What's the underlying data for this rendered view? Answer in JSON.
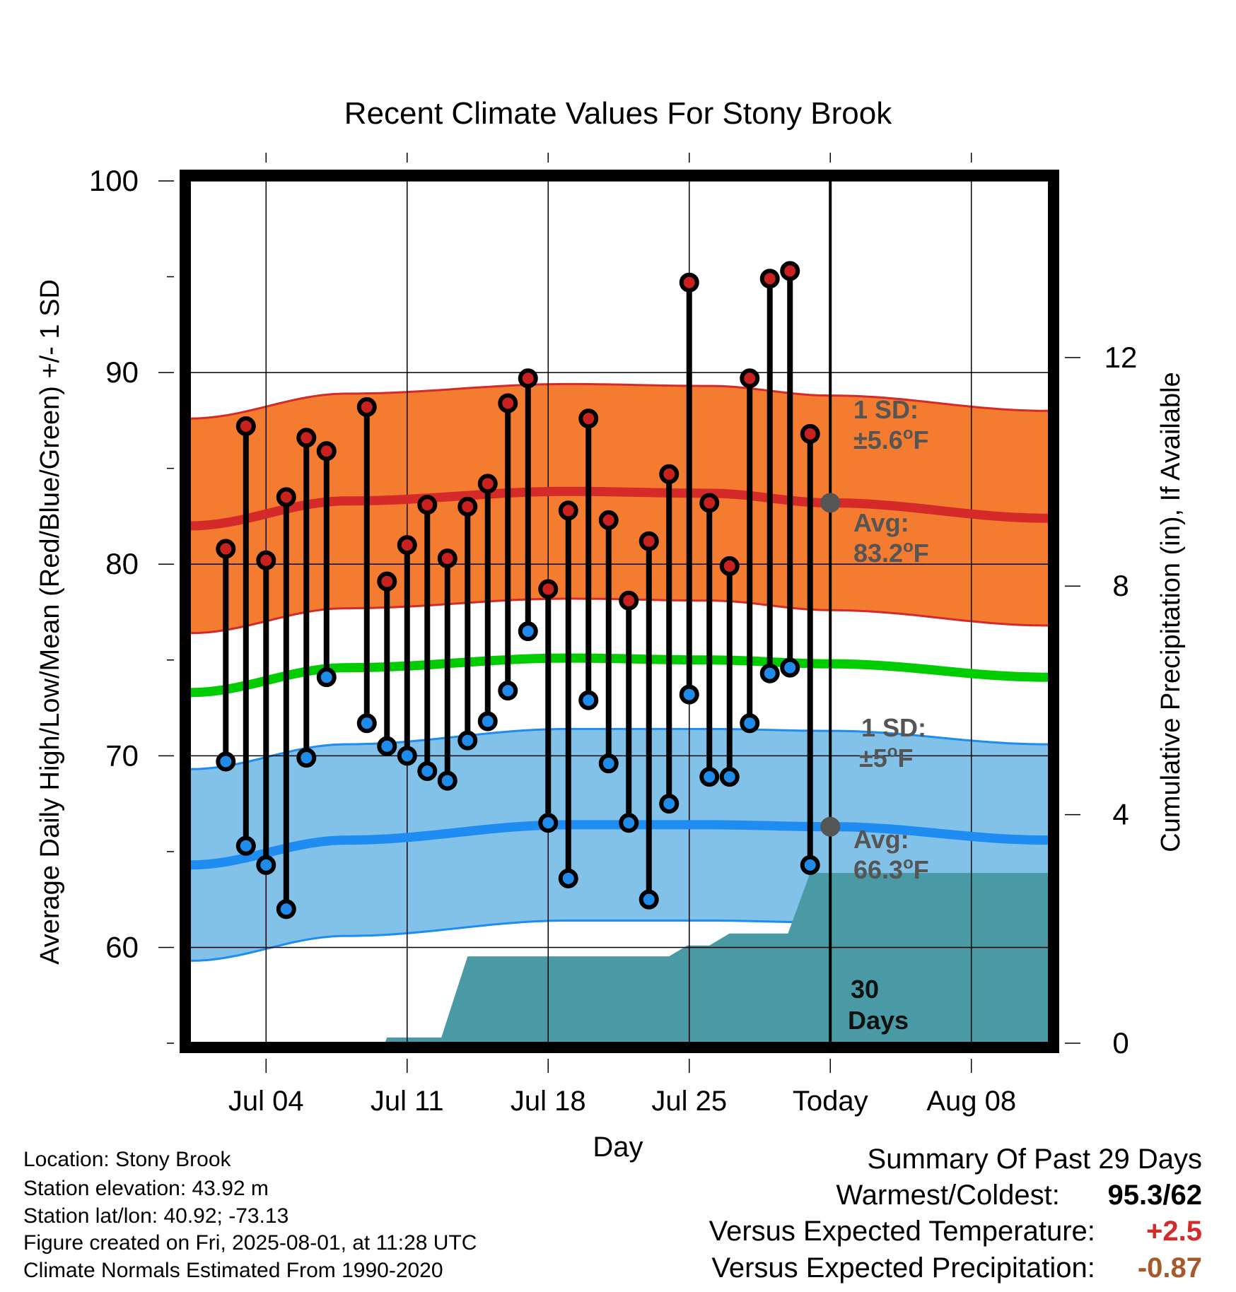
{
  "chart_data": {
    "type": "line",
    "title": "Recent Climate Values For Stony Brook",
    "xlabel": "Day",
    "ylabel_left": "Average Daily High/Low/Mean (Red/Blue/Green) +/- 1 SD",
    "ylabel_right": "Cumulative Precipitation (in), If Available",
    "x_tick_labels": [
      "Jul 04",
      "Jul 11",
      "Jul 18",
      "Jul 25",
      "Today",
      "Aug 08"
    ],
    "x_tick_days": [
      4,
      11,
      18,
      25,
      32,
      39
    ],
    "xlim_days": [
      0.2,
      42.8
    ],
    "ylim": [
      55,
      100
    ],
    "yticks_left": [
      60,
      70,
      80,
      90,
      100
    ],
    "ylim_right": [
      0,
      15.09
    ],
    "yticks_right": [
      0,
      4,
      8,
      12
    ],
    "today_day": 32,
    "grid": true,
    "daily_high": [
      {
        "day": 2,
        "value": 80.8
      },
      {
        "day": 3,
        "value": 87.2
      },
      {
        "day": 4,
        "value": 80.2
      },
      {
        "day": 5,
        "value": 83.5
      },
      {
        "day": 6,
        "value": 86.6
      },
      {
        "day": 7,
        "value": 85.9
      },
      {
        "day": 9,
        "value": 88.2
      },
      {
        "day": 10,
        "value": 79.1
      },
      {
        "day": 11,
        "value": 81.0
      },
      {
        "day": 12,
        "value": 83.1
      },
      {
        "day": 13,
        "value": 80.3
      },
      {
        "day": 14,
        "value": 83.0
      },
      {
        "day": 15,
        "value": 84.2
      },
      {
        "day": 16,
        "value": 88.4
      },
      {
        "day": 17,
        "value": 89.7
      },
      {
        "day": 18,
        "value": 78.7
      },
      {
        "day": 19,
        "value": 82.8
      },
      {
        "day": 20,
        "value": 87.6
      },
      {
        "day": 21,
        "value": 82.3
      },
      {
        "day": 22,
        "value": 78.1
      },
      {
        "day": 23,
        "value": 81.2
      },
      {
        "day": 24,
        "value": 84.7
      },
      {
        "day": 25,
        "value": 94.7
      },
      {
        "day": 26,
        "value": 83.2
      },
      {
        "day": 27,
        "value": 79.9
      },
      {
        "day": 28,
        "value": 89.7
      },
      {
        "day": 29,
        "value": 94.9
      },
      {
        "day": 30,
        "value": 95.3
      },
      {
        "day": 31,
        "value": 86.8
      }
    ],
    "daily_low": [
      {
        "day": 2,
        "value": 69.7
      },
      {
        "day": 3,
        "value": 65.3
      },
      {
        "day": 4,
        "value": 64.3
      },
      {
        "day": 5,
        "value": 62.0
      },
      {
        "day": 6,
        "value": 69.9
      },
      {
        "day": 7,
        "value": 74.1
      },
      {
        "day": 9,
        "value": 71.7
      },
      {
        "day": 10,
        "value": 70.5
      },
      {
        "day": 11,
        "value": 70.0
      },
      {
        "day": 12,
        "value": 69.2
      },
      {
        "day": 13,
        "value": 68.7
      },
      {
        "day": 14,
        "value": 70.8
      },
      {
        "day": 15,
        "value": 71.8
      },
      {
        "day": 16,
        "value": 73.4
      },
      {
        "day": 17,
        "value": 76.5
      },
      {
        "day": 18,
        "value": 66.5
      },
      {
        "day": 19,
        "value": 63.6
      },
      {
        "day": 20,
        "value": 72.9
      },
      {
        "day": 21,
        "value": 69.6
      },
      {
        "day": 22,
        "value": 66.5
      },
      {
        "day": 23,
        "value": 62.5
      },
      {
        "day": 24,
        "value": 67.5
      },
      {
        "day": 25,
        "value": 73.2
      },
      {
        "day": 26,
        "value": 68.9
      },
      {
        "day": 27,
        "value": 68.9
      },
      {
        "day": 28,
        "value": 71.7
      },
      {
        "day": 29,
        "value": 74.3
      },
      {
        "day": 30,
        "value": 74.6
      },
      {
        "day": 31,
        "value": 64.3
      }
    ],
    "normal_high": {
      "days": [
        0.2,
        8,
        19,
        26,
        32,
        42.8
      ],
      "values": [
        82.0,
        83.3,
        83.8,
        83.7,
        83.2,
        82.4
      ],
      "sd": 5.6
    },
    "normal_low": {
      "days": [
        0.2,
        8,
        19,
        26,
        32,
        42.8
      ],
      "values": [
        64.3,
        65.6,
        66.4,
        66.4,
        66.3,
        65.6
      ],
      "sd": 5.0
    },
    "normal_mean": {
      "days": [
        0.2,
        8,
        19,
        26,
        32,
        42.8
      ],
      "values": [
        73.3,
        74.6,
        75.1,
        75.0,
        74.8,
        74.1
      ]
    },
    "cumulative_precip": {
      "steps": [
        [
          0.2,
          0.0
        ],
        [
          9.9,
          0.0
        ],
        [
          10.0,
          0.1
        ],
        [
          12.0,
          0.1
        ],
        [
          12.7,
          0.1
        ],
        [
          14.0,
          1.52
        ],
        [
          24.0,
          1.52
        ],
        [
          24.9,
          1.71
        ],
        [
          26.0,
          1.71
        ],
        [
          27.0,
          1.92
        ],
        [
          29.9,
          1.92
        ],
        [
          31.0,
          2.98
        ],
        [
          42.8,
          2.98
        ]
      ]
    },
    "colors": {
      "high_band": "#f47c30",
      "high_line": "#d42a2a",
      "low_band": "#82c1e8",
      "low_line": "#1e8cf0",
      "mean_line": "#00cc00",
      "precip": "#4a9aa6",
      "high_marker": "#c92020",
      "low_marker": "#1f8cec"
    }
  },
  "annotations": {
    "high_sd_label": "1 SD:",
    "high_sd_value": "±5.6",
    "high_avg_label": "Avg:",
    "high_avg_value": "83.2",
    "low_sd_label": "1 SD:",
    "low_sd_value": "±5",
    "low_avg_label": "Avg:",
    "low_avg_value": "66.3",
    "degree_unit": "o",
    "f_unit": "F",
    "precip_days_line1": "30",
    "precip_days_line2": "Days"
  },
  "footer": {
    "location": "Location: Stony Brook",
    "elevation": "Station elevation: 43.92 m",
    "latlon": "Station lat/lon: 40.92; -73.13",
    "created": "Figure created on Fri, 2025-08-01, at 11:28 UTC",
    "normals": "Climate Normals Estimated From 1990-2020"
  },
  "summary": {
    "title": "Summary Of Past 29 Days",
    "warmest_label": "Warmest/Coldest:",
    "warmest_value": "95.3/62",
    "temp_label": "Versus Expected Temperature:",
    "temp_value": "+2.5",
    "temp_color": "#d42a2a",
    "precip_label": "Versus Expected Precipitation:",
    "precip_value": "-0.87",
    "precip_color": "#a8592a"
  }
}
